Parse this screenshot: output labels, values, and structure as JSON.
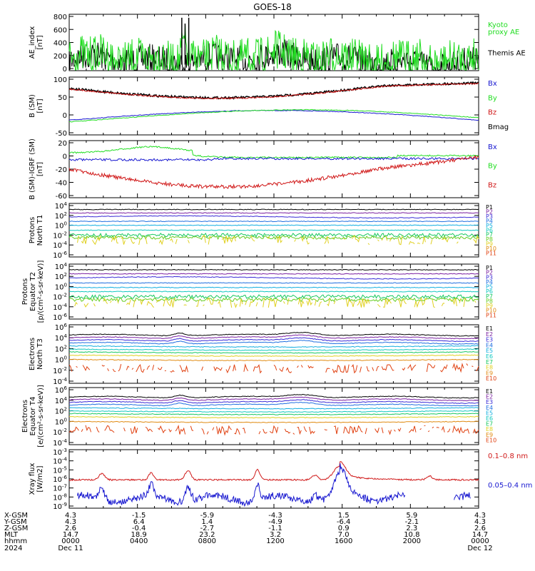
{
  "title": "GOES-18",
  "colors": {
    "black": "#000000",
    "green": "#22dd22",
    "blue": "#1818d0",
    "red": "#d01818",
    "p_palette": [
      "#000000",
      "#7a1fa0",
      "#3a2bd6",
      "#1f6fe0",
      "#12aee0",
      "#12c8c0",
      "#18c860",
      "#66cc22",
      "#e0d020",
      "#e08a10",
      "#e04010",
      "#c00000"
    ],
    "e_palette": [
      "#000000",
      "#7a1fa0",
      "#3a2bd6",
      "#1f6fe0",
      "#12aee0",
      "#12c8c0",
      "#18c860",
      "#e0d020",
      "#e08a10",
      "#e04010",
      "#a00000"
    ]
  },
  "panels": [
    {
      "id": "ae",
      "ylabel": "AE_index\n[nT]",
      "ticks": [
        "800",
        "600",
        "400",
        "200",
        "0"
      ],
      "legend": [
        {
          "text": "Kyoto\nproxy AE",
          "color": "green"
        },
        {
          "text": "Themis AE",
          "color": "black"
        }
      ]
    },
    {
      "id": "bsm",
      "ylabel": "B (SM)\n[nT]",
      "ticks": [
        "100",
        "50",
        "0",
        "-50"
      ],
      "legend": [
        {
          "text": "Bx",
          "color": "blue"
        },
        {
          "text": "By",
          "color": "green"
        },
        {
          "text": "Bz",
          "color": "red"
        },
        {
          "text": "Bmag",
          "color": "black"
        }
      ]
    },
    {
      "id": "bigrf",
      "ylabel": "B (SM)-IGRF (SM)\n[nT]",
      "ticks": [
        "20",
        "0",
        "-20",
        "-40",
        "-60"
      ],
      "legend": [
        {
          "text": "Bx",
          "color": "blue"
        },
        {
          "text": "By",
          "color": "green"
        },
        {
          "text": "Bz",
          "color": "red"
        }
      ]
    },
    {
      "id": "pt1",
      "ylabel": "Protons\nNorth T1",
      "ticks": [
        "10^4",
        "10^2",
        "10^0",
        "10^-2",
        "10^-4",
        "10^-6"
      ],
      "legend": [
        "P1",
        "P2",
        "P3",
        "P4",
        "P5",
        "P6",
        "P7",
        "P8",
        "P9",
        "P10",
        "P11"
      ]
    },
    {
      "id": "pt2",
      "ylabel": "Protons\nEquator T2\n[p/(cm²-s-sr-keV)]",
      "ticks": [
        "10^4",
        "10^2",
        "10^0",
        "10^-2",
        "10^-4",
        "10^-6"
      ],
      "legend": [
        "P1",
        "P2",
        "P3",
        "P4",
        "P5",
        "P6",
        "P7",
        "P8",
        "P9",
        "P10",
        "P11"
      ]
    },
    {
      "id": "et3",
      "ylabel": "Electrons\nNorth T3",
      "ticks": [
        "10^6",
        "10^4",
        "10^2",
        "10^0",
        "10^-2",
        "10^-4"
      ],
      "legend": [
        "E1",
        "E2",
        "E3",
        "E4",
        "E5",
        "E6",
        "E7",
        "E8",
        "E9",
        "E10"
      ]
    },
    {
      "id": "et4",
      "ylabel": "Electrons\nEquator T4\n[e/(cm²-s-sr-keV)]",
      "ticks": [
        "10^6",
        "10^4",
        "10^2",
        "10^0",
        "10^-2",
        "10^-4"
      ],
      "legend": [
        "E1",
        "E2",
        "E3",
        "E4",
        "E5",
        "E6",
        "E7",
        "E8",
        "E9",
        "E10"
      ]
    },
    {
      "id": "xray",
      "ylabel": "Xray flux\n[W/m2]",
      "ticks": [
        "10^-3",
        "10^-4",
        "10^-5",
        "10^-6",
        "10^-7",
        "10^-8",
        "10^-9"
      ],
      "legend": [
        {
          "text": "0.1–0.8 nm",
          "color": "red"
        },
        {
          "text": "0.05–0.4 nm",
          "color": "blue"
        }
      ]
    }
  ],
  "footer": {
    "row_labels": [
      "X-GSM",
      "Y-GSM",
      "Z-GSM",
      "MLT",
      "hhmm",
      "2024"
    ],
    "columns": [
      [
        "4.3",
        "4.3",
        "2.6",
        "14.7",
        "0000",
        "Dec 11"
      ],
      [
        "-1.5",
        "6.4",
        "-0.4",
        "18.9",
        "0400",
        ""
      ],
      [
        "-5.9",
        "1.4",
        "-2.7",
        "23.2",
        "0800",
        ""
      ],
      [
        "-4.3",
        "-4.9",
        "-1.1",
        "3.2",
        "1200",
        ""
      ],
      [
        "1.5",
        "-6.4",
        "0.9",
        "7.0",
        "1600",
        ""
      ],
      [
        "5.9",
        "-2.1",
        "2.3",
        "10.8",
        "2000",
        ""
      ],
      [
        "4.3",
        "4.3",
        "2.6",
        "14.7",
        "0000",
        "Dec 12"
      ]
    ]
  },
  "chart_data": [
    {
      "type": "line",
      "ylabel": "AE_index [nT]",
      "ylim": [
        0,
        800
      ],
      "x": [
        "0000",
        "0400",
        "0800",
        "1200",
        "1600",
        "2000",
        "0000"
      ],
      "series": [
        {
          "name": "Kyoto proxy AE",
          "values": [
            140,
            110,
            300,
            320,
            150,
            80,
            150
          ]
        },
        {
          "name": "Themis AE",
          "values": [
            220,
            150,
            220,
            230,
            120,
            80,
            220
          ]
        }
      ]
    },
    {
      "type": "line",
      "ylabel": "B (SM) [nT]",
      "ylim": [
        -55,
        120
      ],
      "x": [
        "0000",
        "0400",
        "0800",
        "1200",
        "1600",
        "2000",
        "0000"
      ],
      "series": [
        {
          "name": "Bx",
          "values": [
            -15,
            -5,
            10,
            15,
            0,
            -12,
            -15
          ]
        },
        {
          "name": "By",
          "values": [
            -5,
            -5,
            5,
            15,
            18,
            0,
            -8
          ]
        },
        {
          "name": "Bz",
          "values": [
            90,
            70,
            60,
            75,
            90,
            100,
            100
          ]
        },
        {
          "name": "Bmag",
          "values": [
            92,
            72,
            62,
            78,
            92,
            101,
            101
          ]
        }
      ]
    },
    {
      "type": "line",
      "ylabel": "B (SM)-IGRF (SM) [nT]",
      "ylim": [
        -65,
        25
      ],
      "x": [
        "0000",
        "0400",
        "0800",
        "1200",
        "1600",
        "2000",
        "0000"
      ],
      "series": [
        {
          "name": "Bx",
          "values": [
            -4,
            -5,
            -2,
            0,
            0,
            0,
            0
          ]
        },
        {
          "name": "By",
          "values": [
            10,
            18,
            3,
            0,
            2,
            3,
            4
          ]
        },
        {
          "name": "Bz",
          "values": [
            -20,
            -45,
            -50,
            -45,
            -20,
            -5,
            0
          ]
        }
      ]
    },
    {
      "type": "line",
      "ylabel": "Protons North T1 (log10 flux)",
      "ylim": [
        -6,
        4
      ],
      "series_names": [
        "P1",
        "P2",
        "P3",
        "P4",
        "P5",
        "P6",
        "P7",
        "P8",
        "P9",
        "P10",
        "P11"
      ],
      "values_log10": [
        3.2,
        2.5,
        1.7,
        0.8,
        0,
        -1,
        -2,
        -2.5,
        -3,
        -3.5,
        -4
      ]
    },
    {
      "type": "line",
      "ylabel": "Protons Equator T2 [p/(cm²-s-sr-keV)] (log10 flux)",
      "ylim": [
        -6,
        4
      ],
      "series_names": [
        "P1",
        "P2",
        "P3",
        "P4",
        "P5",
        "P6",
        "P7",
        "P8",
        "P9",
        "P10",
        "P11"
      ],
      "values_log10": [
        3.3,
        2.5,
        1.7,
        0.7,
        -0.2,
        -1,
        -2,
        -2.6,
        -3.2,
        -3.6,
        -4
      ]
    },
    {
      "type": "line",
      "ylabel": "Electrons North T3 (log10 flux)",
      "ylim": [
        -4,
        6
      ],
      "series_names": [
        "E1",
        "E2",
        "E3",
        "E4",
        "E5",
        "E6",
        "E7",
        "E8",
        "E9",
        "E10"
      ],
      "values_log10": [
        4.5,
        4,
        3.5,
        3,
        2.5,
        1.9,
        1.4,
        0.8,
        0,
        -1.5
      ]
    },
    {
      "type": "line",
      "ylabel": "Electrons Equator T4 [e/(cm²-s-sr-keV)] (log10 flux)",
      "ylim": [
        -4,
        6
      ],
      "series_names": [
        "E1",
        "E2",
        "E3",
        "E4",
        "E5",
        "E6",
        "E7",
        "E8",
        "E9",
        "E10"
      ],
      "values_log10": [
        4.6,
        4.1,
        3.6,
        3.1,
        2.6,
        2,
        1.5,
        0.9,
        0,
        -1.5
      ]
    },
    {
      "type": "line",
      "ylabel": "Xray flux [W/m2]",
      "ylim": [
        -9,
        -3
      ],
      "series": [
        {
          "name": "0.1–0.8 nm",
          "log10_peaks": [
            -6,
            -5.2,
            -5,
            -5.1,
            -5.5,
            -4.5,
            -5.8,
            -6
          ]
        },
        {
          "name": "0.05–0.4 nm",
          "log10_peaks": [
            -9,
            -8,
            -7,
            -7.2,
            -7.5,
            -6.4,
            -8,
            -9
          ]
        }
      ]
    }
  ]
}
